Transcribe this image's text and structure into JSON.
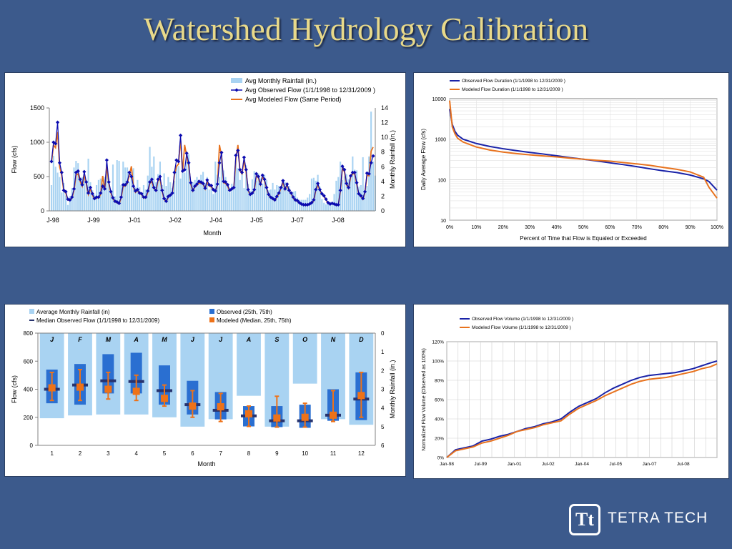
{
  "slide": {
    "title": "Watershed Hydrology Calibration",
    "logo_text": "TETRA TECH",
    "logo_mark": "Tt"
  },
  "chart_data": [
    {
      "type": "bar+line",
      "xlabel": "Month",
      "ylabel": "Flow (cfs)",
      "y2label": "Monthly Rainfall (in.)",
      "ylim": [
        0,
        1500
      ],
      "y2lim": [
        14,
        0
      ],
      "yticks": [
        0,
        500,
        1000,
        1500
      ],
      "y2ticks": [
        14,
        12,
        10,
        8,
        6,
        4,
        2,
        0
      ],
      "x_tick_labels": [
        "J-98",
        "J-99",
        "J-01",
        "J-02",
        "J-04",
        "J-05",
        "J-07",
        "J-08"
      ],
      "legend": [
        "Avg Monthly Rainfall (in.)",
        "Avg Observed Flow (1/1/1998 to 12/31/2009 )",
        "Avg Modeled Flow (Same Period)"
      ],
      "legend_position": "top-right",
      "colors": {
        "rain": "#a9d3f2",
        "observed": "#0b0bb0",
        "modeled": "#e8731f"
      },
      "observed": [
        720,
        1000,
        980,
        1290,
        700,
        560,
        300,
        280,
        170,
        160,
        200,
        320,
        560,
        580,
        460,
        380,
        570,
        420,
        260,
        340,
        250,
        180,
        200,
        200,
        260,
        360,
        320,
        740,
        420,
        280,
        190,
        140,
        130,
        110,
        200,
        380,
        380,
        420,
        560,
        500,
        360,
        290,
        310,
        260,
        250,
        200,
        200,
        290,
        420,
        460,
        340,
        300,
        460,
        500,
        300,
        180,
        140,
        210,
        230,
        260,
        560,
        740,
        720,
        1100,
        580,
        600,
        840,
        700,
        410,
        300,
        360,
        390,
        430,
        420,
        400,
        330,
        450,
        380,
        370,
        310,
        290,
        390,
        700,
        850,
        430,
        420,
        380,
        300,
        320,
        340,
        810,
        880,
        600,
        560,
        780,
        600,
        310,
        240,
        260,
        310,
        540,
        500,
        390,
        520,
        460,
        340,
        240,
        200,
        180,
        160,
        210,
        260,
        340,
        440,
        320,
        390,
        300,
        260,
        200,
        160,
        150,
        120,
        100,
        90,
        90,
        90,
        100,
        120,
        160,
        310,
        400,
        310,
        250,
        220,
        170,
        120,
        100,
        110,
        100,
        90,
        90,
        300,
        650,
        600,
        400,
        340,
        510,
        560,
        560,
        410,
        250,
        220,
        180,
        280,
        550,
        540,
        700,
        800
      ],
      "modeled": [
        700,
        960,
        920,
        1150,
        640,
        520,
        290,
        260,
        160,
        150,
        190,
        300,
        520,
        540,
        430,
        360,
        520,
        400,
        240,
        320,
        230,
        170,
        190,
        190,
        240,
        510,
        310,
        650,
        400,
        260,
        180,
        130,
        120,
        100,
        190,
        360,
        360,
        400,
        520,
        650,
        350,
        270,
        300,
        250,
        240,
        190,
        190,
        270,
        400,
        430,
        330,
        290,
        440,
        470,
        290,
        170,
        130,
        200,
        220,
        250,
        520,
        650,
        680,
        1050,
        560,
        960,
        800,
        660,
        390,
        290,
        350,
        370,
        410,
        400,
        390,
        320,
        430,
        360,
        350,
        300,
        280,
        380,
        960,
        800,
        410,
        400,
        360,
        290,
        310,
        330,
        760,
        960,
        580,
        540,
        740,
        570,
        300,
        230,
        250,
        300,
        510,
        480,
        380,
        500,
        440,
        330,
        230,
        190,
        170,
        150,
        200,
        250,
        330,
        420,
        310,
        380,
        290,
        250,
        190,
        150,
        140,
        110,
        95,
        85,
        85,
        85,
        95,
        110,
        150,
        300,
        380,
        300,
        240,
        210,
        160,
        110,
        95,
        105,
        95,
        85,
        85,
        290,
        620,
        570,
        380,
        330,
        490,
        540,
        540,
        390,
        240,
        210,
        170,
        270,
        520,
        510,
        870,
        930
      ],
      "rainfall": [
        3.5,
        7.5,
        6,
        5.2,
        4.6,
        2.5,
        3.8,
        2.1,
        0.8,
        2,
        3.1,
        5.9,
        6.8,
        6.5,
        4.2,
        4.6,
        5,
        4.2,
        7.1,
        3.9,
        2.8,
        2.2,
        3.5,
        4.2,
        4.4,
        3.8,
        4.6,
        6.4,
        4.4,
        2.2,
        6.3,
        2,
        6.9,
        6.8,
        3.5,
        6.7,
        5.9,
        5.9,
        3.9,
        5.1,
        5.8,
        3.2,
        4.2,
        3.2,
        2.2,
        3.5,
        2.9,
        4.8,
        8.7,
        6,
        7.4,
        3.9,
        5,
        6.7,
        3.5,
        5.1,
        3.4,
        4.6,
        3.9,
        3.1,
        4.1,
        6.1,
        6.1,
        4.4,
        5.7,
        5.2,
        7.1,
        7.7,
        3.8,
        3.9,
        4.2,
        4.6,
        3.8,
        4.9,
        5.3,
        3.8,
        4.6,
        2.9,
        3.4,
        2.3,
        6.7,
        4.9,
        4.6,
        7.8,
        5.5,
        4.6,
        3.8,
        2.5,
        3.7,
        3.4,
        7.1,
        5.8,
        4.2,
        5.1,
        3.1,
        6.2,
        3.7,
        2.7,
        4.3,
        5.4,
        4.1,
        5.1,
        4.4,
        3.7,
        4.9,
        4.2,
        2.8,
        2.9,
        3.8,
        2.9,
        3.5,
        3.4,
        3.3,
        4.2,
        3.9,
        3.8,
        3.4,
        2.5,
        2.6,
        2.7,
        1.8,
        1.5,
        1.5,
        1.5,
        1.5,
        1.8,
        2.3,
        4.4,
        4.5,
        4.1,
        4.9,
        3.3,
        1.6,
        1.1,
        0.9,
        1.3,
        1.2,
        1,
        2.3,
        4.1,
        4.6,
        6.7,
        4.2,
        4.7,
        5,
        4.3,
        4.8,
        7.4,
        5.6,
        5.5,
        3.3,
        3.5,
        7.3,
        2.8,
        3.4,
        7.4,
        13.5,
        6.7,
        4.8
      ]
    },
    {
      "type": "line",
      "xlabel": "Percent of Time that Flow is Equaled or Exceeded",
      "ylabel": "Daily Average Flow (cfs)",
      "yscale": "log",
      "ylim": [
        10,
        10000
      ],
      "yticks": [
        10,
        100,
        1000,
        10000
      ],
      "x_tick_labels": [
        "0%",
        "10%",
        "20%",
        "30%",
        "40%",
        "50%",
        "60%",
        "70%",
        "80%",
        "90%",
        "100%"
      ],
      "legend": [
        "Observed Flow Duration (1/1/1998 to 12/31/2009 )",
        "Modeled Flow Duration (1/1/1998 to 12/31/2009 )"
      ],
      "legend_position": "top-left",
      "colors": {
        "observed": "#1a23a8",
        "modeled": "#e8731f"
      },
      "observed": [
        [
          0,
          5500
        ],
        [
          1,
          2300
        ],
        [
          2,
          1550
        ],
        [
          3,
          1250
        ],
        [
          5,
          1000
        ],
        [
          10,
          780
        ],
        [
          15,
          660
        ],
        [
          20,
          580
        ],
        [
          25,
          520
        ],
        [
          30,
          470
        ],
        [
          35,
          430
        ],
        [
          40,
          390
        ],
        [
          45,
          350
        ],
        [
          50,
          320
        ],
        [
          55,
          290
        ],
        [
          60,
          260
        ],
        [
          65,
          235
        ],
        [
          70,
          210
        ],
        [
          75,
          185
        ],
        [
          80,
          165
        ],
        [
          85,
          150
        ],
        [
          90,
          130
        ],
        [
          95,
          105
        ],
        [
          97,
          90
        ],
        [
          100,
          55
        ]
      ],
      "modeled": [
        [
          0,
          9000
        ],
        [
          1,
          2000
        ],
        [
          2,
          1350
        ],
        [
          3,
          1050
        ],
        [
          5,
          850
        ],
        [
          10,
          640
        ],
        [
          15,
          540
        ],
        [
          20,
          480
        ],
        [
          25,
          440
        ],
        [
          30,
          410
        ],
        [
          35,
          385
        ],
        [
          40,
          365
        ],
        [
          45,
          340
        ],
        [
          50,
          320
        ],
        [
          55,
          300
        ],
        [
          60,
          285
        ],
        [
          65,
          265
        ],
        [
          70,
          245
        ],
        [
          75,
          225
        ],
        [
          80,
          200
        ],
        [
          85,
          180
        ],
        [
          90,
          155
        ],
        [
          95,
          115
        ],
        [
          97,
          65
        ],
        [
          100,
          35
        ]
      ]
    },
    {
      "type": "box+bar",
      "xlabel": "Month",
      "ylabel": "Flow (cfs)",
      "y2label": "Monthly Rainfall (in.)",
      "ylim": [
        0,
        800
      ],
      "y2lim": [
        6,
        0
      ],
      "yticks": [
        0,
        200,
        400,
        600,
        800
      ],
      "y2ticks": [
        0,
        1,
        2,
        3,
        4,
        5,
        6
      ],
      "categories": [
        "1",
        "2",
        "3",
        "4",
        "5",
        "6",
        "7",
        "8",
        "9",
        "10",
        "11",
        "12"
      ],
      "month_letters": [
        "J",
        "F",
        "M",
        "A",
        "M",
        "J",
        "J",
        "A",
        "S",
        "O",
        "N",
        "D"
      ],
      "legend": [
        "Average Monthly Rainfall (in)",
        "Median Observed Flow (1/1/1998 to 12/31/2009)",
        "Observed (25th, 75th)",
        "Modeled (Median, 25th, 75th)"
      ],
      "legend_position": "top",
      "colors": {
        "rain": "#a9d3f2",
        "observed_box": "#2a6fd1",
        "median": "#27336e",
        "modeled": "#ee7218"
      },
      "rainfall": [
        4.55,
        4.4,
        4.35,
        4.35,
        4.5,
        5.0,
        4.6,
        3.35,
        5.0,
        2.7,
        4.6,
        4.9
      ],
      "observed_box": [
        [
          300,
          540
        ],
        [
          290,
          580
        ],
        [
          370,
          650
        ],
        [
          370,
          660
        ],
        [
          290,
          570
        ],
        [
          220,
          460
        ],
        [
          185,
          380
        ],
        [
          135,
          280
        ],
        [
          130,
          280
        ],
        [
          125,
          290
        ],
        [
          175,
          400
        ],
        [
          180,
          520
        ]
      ],
      "observed_median": [
        400,
        430,
        460,
        455,
        390,
        290,
        250,
        210,
        175,
        175,
        215,
        330
      ],
      "modeled_median": [
        410,
        415,
        400,
        385,
        335,
        280,
        275,
        225,
        195,
        200,
        215,
        355
      ],
      "modeled_range": [
        [
          320,
          520
        ],
        [
          320,
          540
        ],
        [
          330,
          520
        ],
        [
          320,
          500
        ],
        [
          280,
          430
        ],
        [
          200,
          390
        ],
        [
          170,
          370
        ],
        [
          135,
          280
        ],
        [
          130,
          350
        ],
        [
          130,
          300
        ],
        [
          170,
          390
        ],
        [
          200,
          520
        ]
      ]
    },
    {
      "type": "line",
      "ylabel": "Normalized Flow Volume (Observed as 100%)",
      "ylim": [
        0,
        120
      ],
      "yticks": [
        0,
        20,
        40,
        60,
        80,
        100,
        120
      ],
      "ytick_labels": [
        "0%",
        "20%",
        "40%",
        "60%",
        "80%",
        "100%",
        "120%"
      ],
      "x_tick_labels": [
        "Jan-98",
        "Jul-99",
        "Jan-01",
        "Jul-02",
        "Jan-04",
        "Jul-05",
        "Jan-07",
        "Jul-08"
      ],
      "legend": [
        "Observed Flow Volume (1/1/1998 to 12/31/2009 )",
        "Modeled Flow Volume (1/1/1998 to 12/31/2009 )"
      ],
      "legend_position": "top-left",
      "colors": {
        "observed": "#1a23a8",
        "modeled": "#e8731f"
      },
      "observed": [
        [
          0,
          0
        ],
        [
          4,
          8
        ],
        [
          8,
          10
        ],
        [
          12,
          12
        ],
        [
          16,
          17
        ],
        [
          20,
          19
        ],
        [
          24,
          22
        ],
        [
          28,
          24
        ],
        [
          32,
          27
        ],
        [
          36,
          30
        ],
        [
          40,
          32
        ],
        [
          44,
          35
        ],
        [
          48,
          37
        ],
        [
          52,
          40
        ],
        [
          56,
          47
        ],
        [
          60,
          53
        ],
        [
          64,
          57
        ],
        [
          68,
          61
        ],
        [
          72,
          67
        ],
        [
          76,
          72
        ],
        [
          80,
          76
        ],
        [
          84,
          80
        ],
        [
          88,
          83
        ],
        [
          92,
          85
        ],
        [
          96,
          86
        ],
        [
          100,
          87
        ],
        [
          104,
          88
        ],
        [
          108,
          90
        ],
        [
          112,
          92
        ],
        [
          116,
          95
        ],
        [
          120,
          98
        ],
        [
          123,
          100
        ]
      ],
      "modeled": [
        [
          0,
          0
        ],
        [
          4,
          7
        ],
        [
          8,
          9
        ],
        [
          12,
          11
        ],
        [
          16,
          15
        ],
        [
          20,
          17
        ],
        [
          24,
          20
        ],
        [
          28,
          23
        ],
        [
          32,
          27
        ],
        [
          36,
          29
        ],
        [
          40,
          31
        ],
        [
          44,
          34
        ],
        [
          48,
          36
        ],
        [
          52,
          38
        ],
        [
          56,
          45
        ],
        [
          60,
          51
        ],
        [
          64,
          55
        ],
        [
          68,
          59
        ],
        [
          72,
          64
        ],
        [
          76,
          68
        ],
        [
          80,
          72
        ],
        [
          84,
          76
        ],
        [
          88,
          79
        ],
        [
          92,
          81
        ],
        [
          96,
          82
        ],
        [
          100,
          83
        ],
        [
          104,
          85
        ],
        [
          108,
          87
        ],
        [
          112,
          89
        ],
        [
          116,
          92
        ],
        [
          120,
          94
        ],
        [
          123,
          97
        ]
      ]
    }
  ]
}
